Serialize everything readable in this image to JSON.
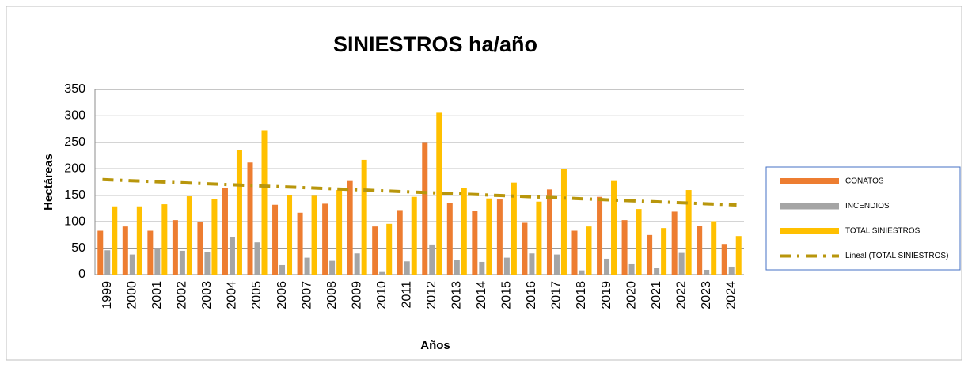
{
  "chart_data": {
    "type": "bar",
    "title": "SINIESTROS ha/año",
    "x_label": "Años",
    "y_label": "Hectáreas",
    "categories": [
      "1999",
      "2000",
      "2001",
      "2002",
      "2003",
      "2004",
      "2005",
      "2006",
      "2007",
      "2008",
      "2009",
      "2010",
      "2011",
      "2012",
      "2013",
      "2014",
      "2015",
      "2016",
      "2017",
      "2018",
      "2019",
      "2020",
      "2021",
      "2022",
      "2023",
      "2024"
    ],
    "series": [
      {
        "name": "CONATOS",
        "color": "#ed7d31",
        "values": [
          83,
          91,
          83,
          103,
          100,
          164,
          212,
          132,
          117,
          134,
          177,
          91,
          122,
          249,
          136,
          120,
          142,
          98,
          161,
          83,
          147,
          103,
          75,
          119,
          92,
          58
        ]
      },
      {
        "name": "INCENDIOS",
        "color": "#a5a5a5",
        "values": [
          46,
          38,
          50,
          45,
          43,
          71,
          61,
          18,
          32,
          26,
          40,
          5,
          25,
          57,
          28,
          24,
          32,
          40,
          38,
          8,
          30,
          21,
          13,
          41,
          9,
          15
        ]
      },
      {
        "name": "TOTAL SINIESTROS",
        "color": "#ffc000",
        "values": [
          129,
          129,
          133,
          148,
          143,
          235,
          273,
          150,
          149,
          160,
          217,
          96,
          147,
          306,
          164,
          144,
          174,
          138,
          199,
          91,
          177,
          124,
          88,
          160,
          101,
          73
        ]
      }
    ],
    "trendline": {
      "name": "Lineal (TOTAL SINIESTROS)",
      "color": "#b8960c"
    },
    "ylim": [
      0,
      350
    ],
    "yticks": [
      0,
      50,
      100,
      150,
      200,
      250,
      300,
      350
    ],
    "grid": true,
    "legend": "right"
  }
}
